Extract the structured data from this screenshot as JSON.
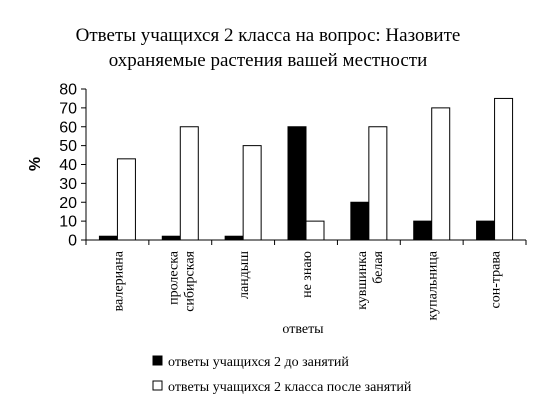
{
  "chart_data": {
    "type": "bar",
    "title": [
      "Ответы учащихся 2 класса на вопрос: Назовите",
      "охраняемые растения вашей местности"
    ],
    "xlabel": "ответы",
    "ylabel": "%",
    "ylim": [
      0,
      80
    ],
    "yticks": [
      0,
      10,
      20,
      30,
      40,
      50,
      60,
      70,
      80
    ],
    "grid": false,
    "legend_position": "bottom",
    "categories": [
      [
        "валериана"
      ],
      [
        "пролеска",
        "сибирская"
      ],
      [
        "ландыш"
      ],
      [
        "не знаю"
      ],
      [
        "кувшинка",
        "белая"
      ],
      [
        "купальница"
      ],
      [
        "сон-трава"
      ]
    ],
    "series": [
      {
        "name": "ответы учащихся 2 до занятий",
        "color": "#000000",
        "values": [
          2,
          2,
          2,
          60,
          20,
          10,
          10
        ]
      },
      {
        "name": "ответы учащихся 2 класса после занятий",
        "color": "#ffffff",
        "values": [
          43,
          60,
          50,
          10,
          60,
          70,
          75
        ]
      }
    ]
  }
}
